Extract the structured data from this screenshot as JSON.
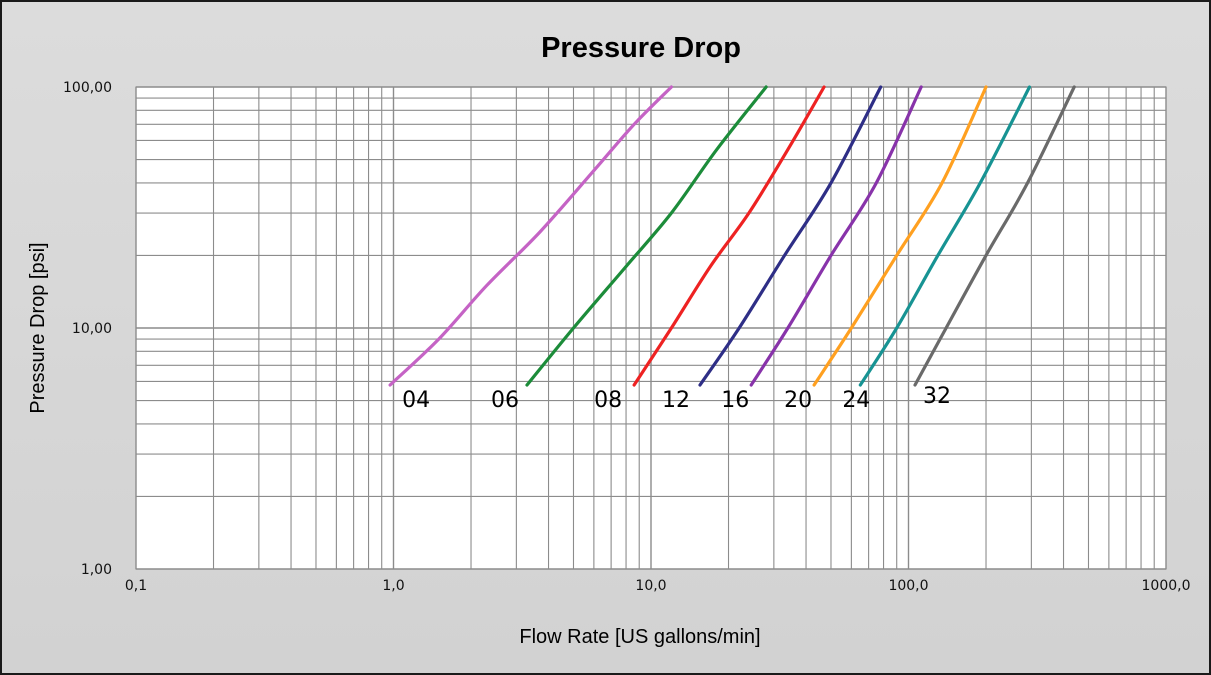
{
  "chart_data": {
    "type": "line",
    "title": "Pressure Drop",
    "xlabel": "Flow Rate [US gallons/min]",
    "ylabel": "Pressure Drop [psi]",
    "x_scale": "log",
    "y_scale": "log",
    "xlim": [
      0.1,
      1000
    ],
    "ylim": [
      1,
      100
    ],
    "x_tick_labels": [
      "0,1",
      "1,0",
      "10,0",
      "100,0",
      "1000,0"
    ],
    "y_tick_labels": [
      "1,00",
      "10,00",
      "100,00"
    ],
    "grid": true,
    "legend": "none",
    "colors": {
      "background": "#d6d6d6",
      "plot_area": "#ffffff",
      "grid": "#8c8c8c"
    },
    "series": [
      {
        "name": "04",
        "color": "#c563c5",
        "x": [
          0.97,
          1.5,
          2.3,
          3.7,
          6.0,
          8.6,
          12.0
        ],
        "y": [
          5.8,
          9.0,
          15.0,
          25.0,
          45.0,
          70.0,
          100.0
        ]
      },
      {
        "name": "06",
        "color": "#1c8c3a",
        "x": [
          3.3,
          5.0,
          8.0,
          12.0,
          18.0,
          28.0
        ],
        "y": [
          5.8,
          10.0,
          18.0,
          30.0,
          55.0,
          100.0
        ]
      },
      {
        "name": "08",
        "color": "#ee2222",
        "x": [
          8.6,
          12.0,
          17.0,
          24.0,
          34.0,
          47.0
        ],
        "y": [
          5.8,
          10.0,
          18.0,
          30.0,
          55.0,
          100.0
        ]
      },
      {
        "name": "12",
        "color": "#2e2e86",
        "x": [
          15.5,
          22.0,
          33.0,
          50.0,
          78.0
        ],
        "y": [
          5.8,
          10.0,
          20.0,
          40.0,
          100.0
        ]
      },
      {
        "name": "16",
        "color": "#8833aa",
        "x": [
          24.5,
          34.0,
          50.0,
          75.0,
          112.0
        ],
        "y": [
          5.8,
          10.0,
          20.0,
          40.0,
          100.0
        ]
      },
      {
        "name": "20",
        "color": "#ffa020",
        "x": [
          43.0,
          60.0,
          90.0,
          135.0,
          200.0
        ],
        "y": [
          5.8,
          10.0,
          20.0,
          40.0,
          100.0
        ]
      },
      {
        "name": "24",
        "color": "#179393",
        "x": [
          65.0,
          90.0,
          130.0,
          190.0,
          295.0
        ],
        "y": [
          5.8,
          10.0,
          20.0,
          40.0,
          100.0
        ]
      },
      {
        "name": "32",
        "color": "#6a6a6a",
        "x": [
          106.0,
          140.0,
          200.0,
          290.0,
          440.0
        ],
        "y": [
          5.8,
          10.0,
          20.0,
          40.0,
          100.0
        ]
      }
    ]
  }
}
